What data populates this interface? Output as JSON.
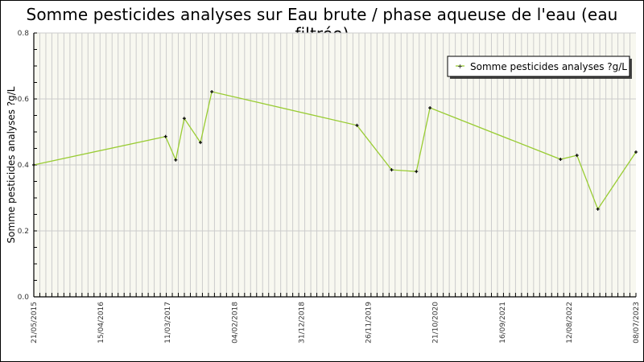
{
  "chart_data": {
    "type": "line",
    "title": "Somme pesticides analyses sur Eau brute / phase aqueuse de l'eau (eau filtrée)",
    "xlabel": "",
    "ylabel": "Somme pesticides analyses ?g/L",
    "ylim": [
      0.0,
      0.8
    ],
    "yticks": [
      "0.0",
      "0.2",
      "0.4",
      "0.6",
      "0.8"
    ],
    "xticks": [
      "21/05/2015",
      "15/04/2016",
      "11/03/2017",
      "04/02/2018",
      "31/12/2018",
      "26/11/2019",
      "21/10/2020",
      "16/09/2021",
      "12/08/2022",
      "08/07/2023"
    ],
    "grid": true,
    "legend_position": "top-right",
    "series": [
      {
        "name": "Somme pesticides analyses ?g/L",
        "color": "#99cc33",
        "marker_color": "#000000",
        "points": [
          {
            "x": "2015-05-21",
            "y": 0.4
          },
          {
            "x": "2017-03-01",
            "y": 0.486
          },
          {
            "x": "2017-04-20",
            "y": 0.415
          },
          {
            "x": "2017-06-01",
            "y": 0.541
          },
          {
            "x": "2017-08-20",
            "y": 0.468
          },
          {
            "x": "2017-10-15",
            "y": 0.622
          },
          {
            "x": "2019-10-01",
            "y": 0.52
          },
          {
            "x": "2020-03-20",
            "y": 0.385
          },
          {
            "x": "2020-07-20",
            "y": 0.38
          },
          {
            "x": "2020-09-25",
            "y": 0.573
          },
          {
            "x": "2022-07-01",
            "y": 0.417
          },
          {
            "x": "2022-09-20",
            "y": 0.429
          },
          {
            "x": "2023-01-01",
            "y": 0.266
          },
          {
            "x": "2023-07-08",
            "y": 0.439
          }
        ]
      }
    ]
  },
  "legend": {
    "label": "Somme pesticides analyses ?g/L"
  },
  "colors": {
    "line": "#99cc33",
    "plot_bg": "#f8f8f0",
    "grid": "#cccccc",
    "axis": "#000000"
  }
}
